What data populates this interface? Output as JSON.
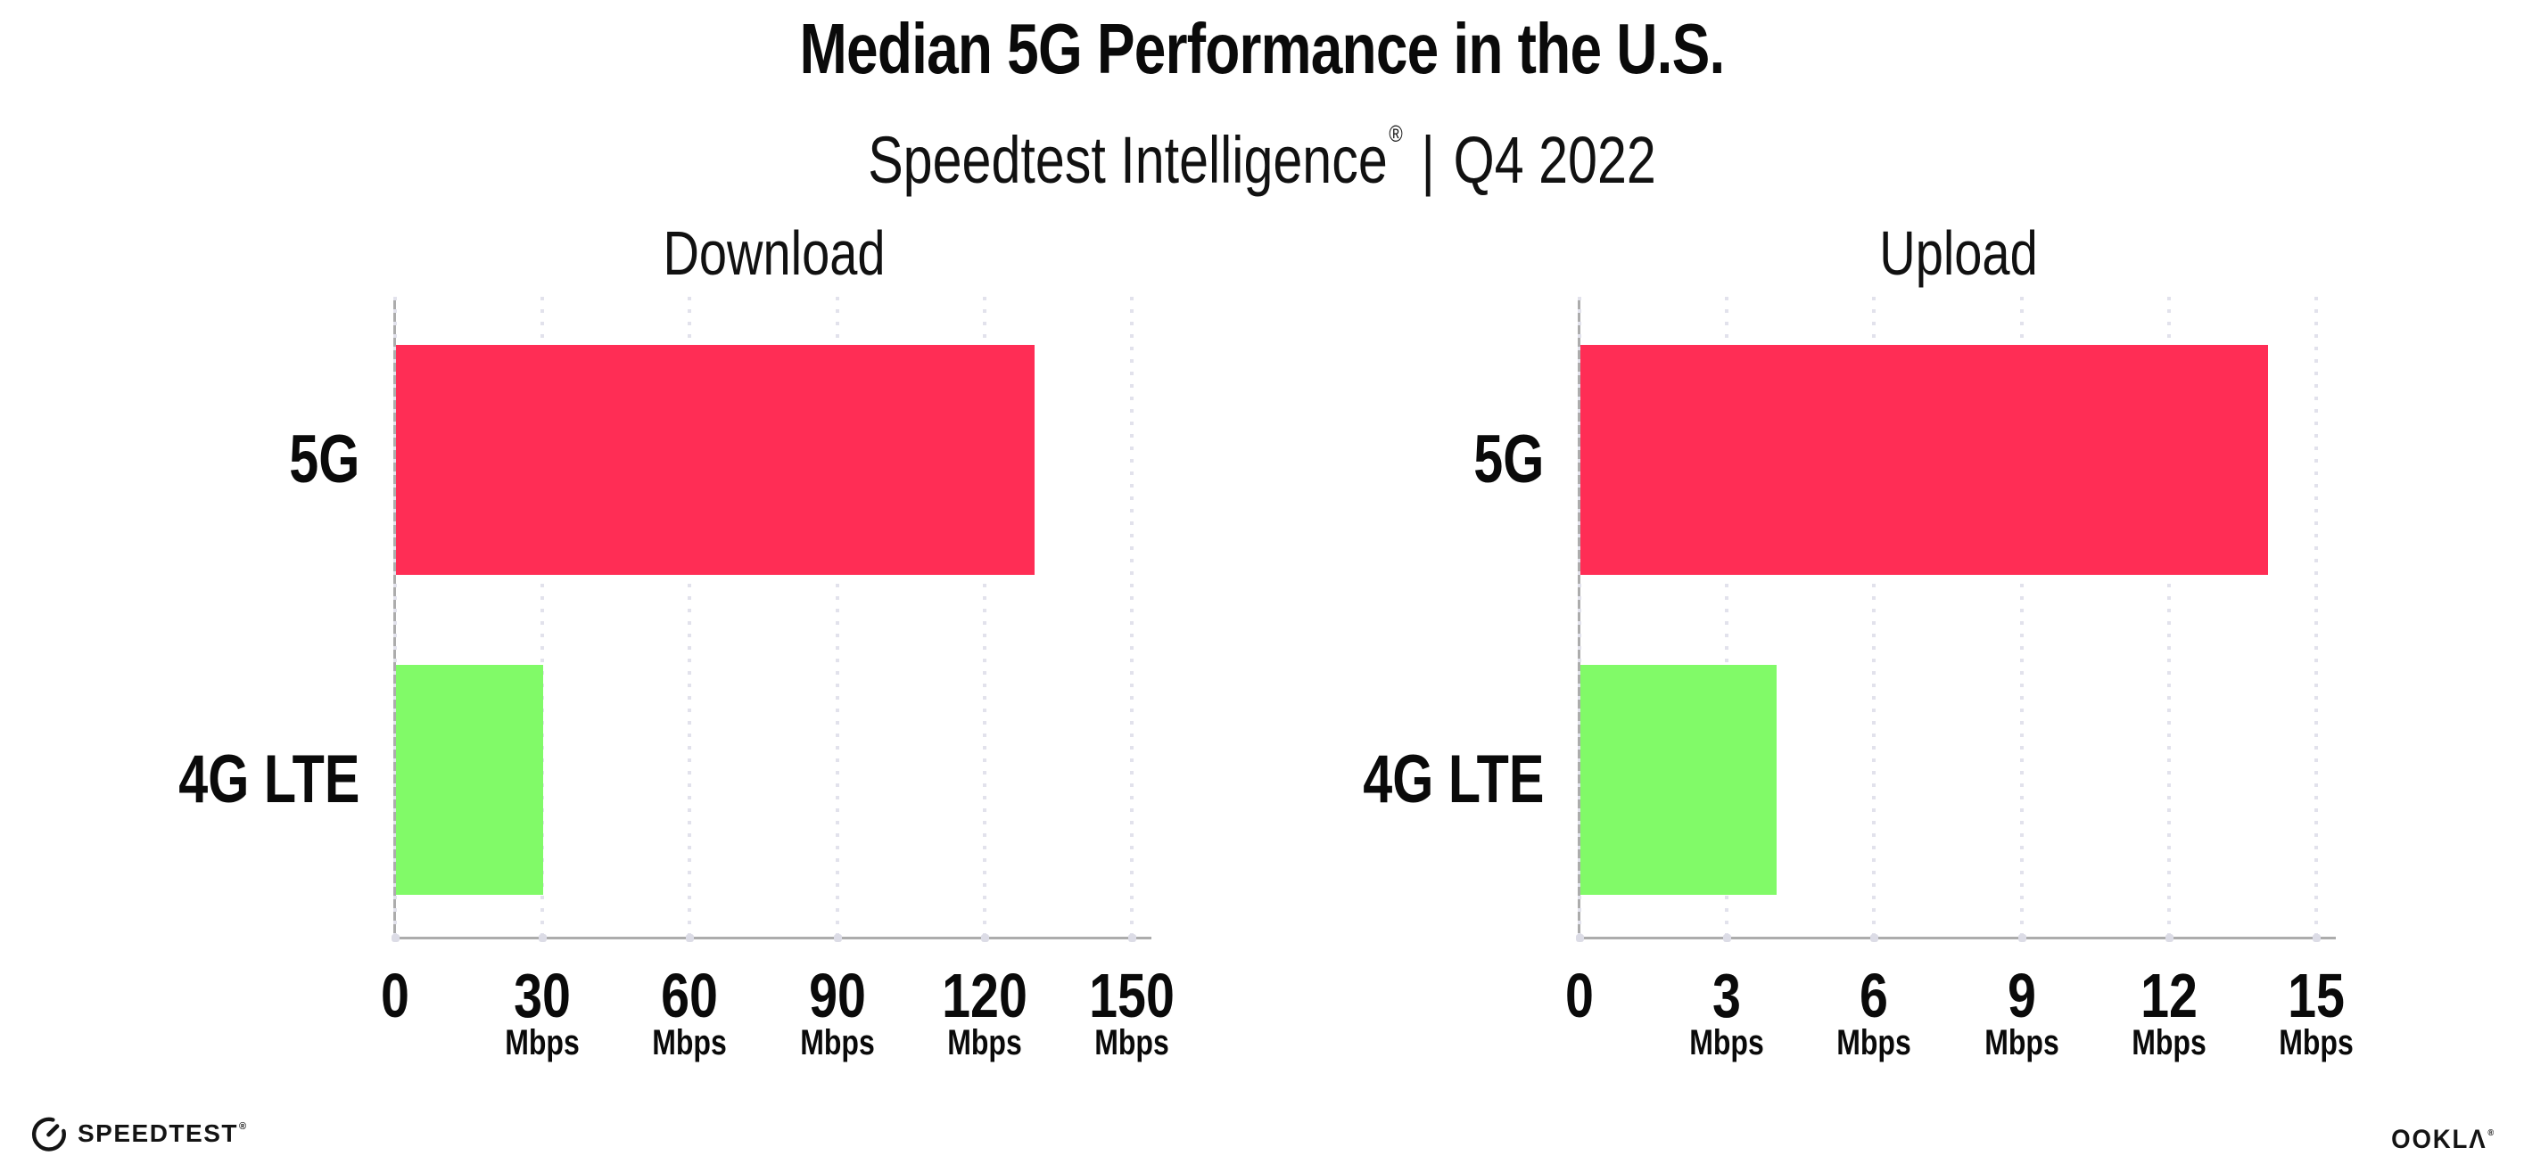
{
  "header": {
    "title": "Median 5G Performance in the U.S.",
    "subtitle_brand": "Speedtest Intelligence",
    "subtitle_reg": "®",
    "subtitle_separator": "|",
    "subtitle_period": "Q4 2022"
  },
  "colors": {
    "bar_5g": "#FF2D55",
    "bar_4g_lte": "#81FA68",
    "axis": "#ACACAC",
    "gridline": "#E2E2EC",
    "axis_dot": "#DCDCE6",
    "text": "#0A0A0A"
  },
  "chart_data": [
    {
      "type": "bar",
      "orientation": "horizontal",
      "title": "Download",
      "categories": [
        "5G",
        "4G LTE"
      ],
      "values": [
        130,
        30
      ],
      "unit": "Mbps",
      "xlim": [
        0,
        150
      ],
      "xticks": [
        0,
        30,
        60,
        90,
        120,
        150
      ],
      "xtick_unit_label": "Mbps",
      "grid": "dotted-vertical",
      "legend": "none",
      "bar_colors": [
        "#FF2D55",
        "#81FA68"
      ]
    },
    {
      "type": "bar",
      "orientation": "horizontal",
      "title": "Upload",
      "categories": [
        "5G",
        "4G LTE"
      ],
      "values": [
        14,
        4
      ],
      "unit": "Mbps",
      "xlim": [
        0,
        15
      ],
      "xticks": [
        0,
        3,
        6,
        9,
        12,
        15
      ],
      "xtick_unit_label": "Mbps",
      "grid": "dotted-vertical",
      "legend": "none",
      "bar_colors": [
        "#FF2D55",
        "#81FA68"
      ]
    }
  ],
  "footer": {
    "speedtest_label": "SPEEDTEST",
    "speedtest_reg": "®",
    "ookla_label": "OOKLΛ",
    "ookla_reg": "®"
  }
}
